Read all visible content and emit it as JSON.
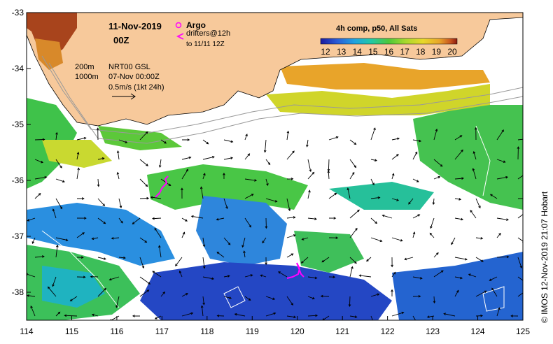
{
  "header": {
    "date": "11-Nov-2019",
    "time": "00Z",
    "composite_title": "4h comp, p50, All Sats"
  },
  "legend": {
    "argo_label": "Argo",
    "drifters_label": "drifters@12h",
    "drifters_until": "to 11/11 12Z",
    "argo_color": "#ff00ff",
    "drifter_color": "#ff00ff"
  },
  "contours": {
    "label_200": "200m",
    "label_1000": "1000m"
  },
  "current_info": {
    "source": "NRT00 GSL",
    "date": "07-Nov 00:00Z",
    "scale": "0.5m/s (1kt 24h)"
  },
  "colorbar": {
    "ticks": [
      "12",
      "13",
      "14",
      "15",
      "16",
      "17",
      "18",
      "19",
      "20"
    ],
    "min": 12,
    "max": 20
  },
  "axes": {
    "x_ticks": [
      "114",
      "115",
      "116",
      "117",
      "118",
      "119",
      "120",
      "121",
      "122",
      "123",
      "124",
      "125"
    ],
    "y_ticks": [
      "-33",
      "-34",
      "-35",
      "-36",
      "-37",
      "-38"
    ],
    "lon_range": [
      114,
      125
    ],
    "lat_range": [
      -38.5,
      -33
    ]
  },
  "credit": "© IMOS 12-Nov-2019 21:07 Hobart",
  "colors": {
    "land": "#f7c99b",
    "sst_stops": [
      "#1a1a9e",
      "#2a5bd6",
      "#1fa3e0",
      "#22c8a6",
      "#4ec83a",
      "#a6d92e",
      "#e8d82a",
      "#e8a52a",
      "#c8561e",
      "#8a1a10"
    ]
  }
}
